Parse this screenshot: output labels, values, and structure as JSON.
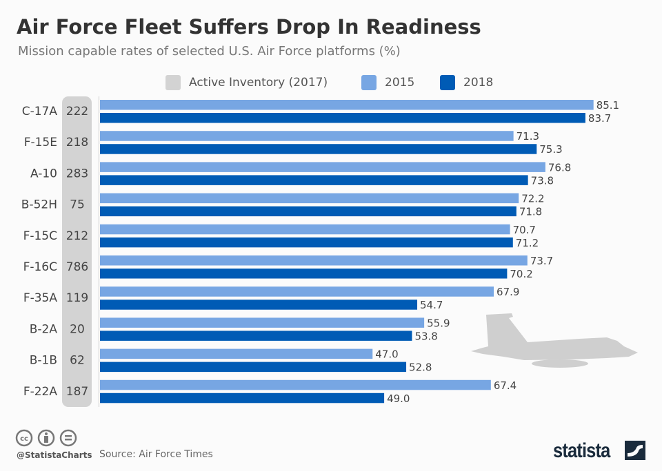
{
  "title": "Air Force Fleet Suffers Drop In Readiness",
  "subtitle": "Mission capable rates of selected U.S. Air Force platforms (%)",
  "colors": {
    "inventory": "#d3d3d3",
    "2015": "#77a6e3",
    "2018": "#005bb5",
    "text": "#444444"
  },
  "legend": [
    {
      "label": "Active Inventory (2017)",
      "color": "#d3d3d3"
    },
    {
      "label": "2015",
      "color": "#77a6e3"
    },
    {
      "label": "2018",
      "color": "#005bb5"
    }
  ],
  "chart_data": {
    "type": "bar",
    "orientation": "horizontal",
    "categories": [
      "C-17A",
      "F-15E",
      "A-10",
      "B-52H",
      "F-15C",
      "F-16C",
      "F-35A",
      "B-2A",
      "B-1B",
      "F-22A"
    ],
    "inventory": {
      "name": "Active Inventory (2017)",
      "values": [
        222,
        218,
        283,
        75,
        212,
        786,
        119,
        20,
        62,
        187
      ]
    },
    "series": [
      {
        "name": "2015",
        "values": [
          85.1,
          71.3,
          76.8,
          72.2,
          70.7,
          73.7,
          67.9,
          55.9,
          47.0,
          67.4
        ]
      },
      {
        "name": "2018",
        "values": [
          83.7,
          75.3,
          73.8,
          71.8,
          71.2,
          70.2,
          54.7,
          53.8,
          52.8,
          49.0
        ]
      }
    ],
    "xlim": [
      0,
      100
    ],
    "grid": false,
    "legend_placement": "top"
  },
  "footer": {
    "handle": "@StatistaCharts",
    "source": "Source: Air Force Times",
    "logo": "statista",
    "icons": [
      "cc-icon",
      "by-icon",
      "nd-icon"
    ]
  }
}
